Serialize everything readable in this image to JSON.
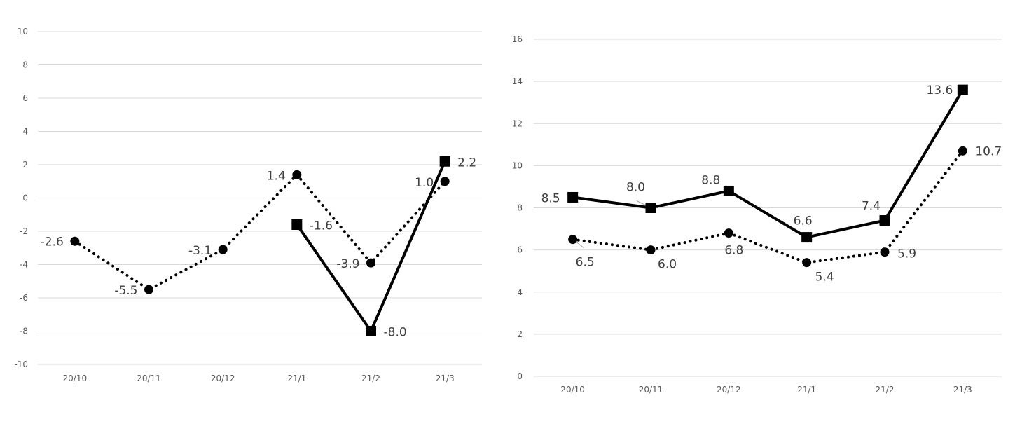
{
  "chart_data": [
    {
      "type": "line",
      "title": "",
      "xlabel": "",
      "ylabel": "",
      "categories": [
        "20/10",
        "20/11",
        "20/12",
        "21/1",
        "21/2",
        "21/3"
      ],
      "ylim": [
        -10,
        10
      ],
      "yticks": [
        -10,
        -8,
        -6,
        -4,
        -2,
        0,
        2,
        4,
        6,
        8,
        10
      ],
      "grid": true,
      "series": [
        {
          "values": [
            -2.6,
            -5.5,
            -3.1,
            1.4,
            -3.9,
            1.0
          ],
          "labels": [
            "-2.6",
            "-5.5",
            "-3.1",
            "1.4",
            "-3.9",
            "1.0"
          ],
          "style": "dotted",
          "marker": "circle",
          "color": "#000000"
        },
        {
          "values": [
            null,
            null,
            null,
            -1.6,
            -8.0,
            2.2
          ],
          "labels": [
            "",
            "",
            "",
            "-1.6",
            "-8.0",
            "2.2"
          ],
          "style": "solid",
          "marker": "square",
          "color": "#000000"
        }
      ]
    },
    {
      "type": "line",
      "title": "",
      "xlabel": "",
      "ylabel": "",
      "categories": [
        "20/10",
        "20/11",
        "20/12",
        "21/1",
        "21/2",
        "21/3"
      ],
      "ylim": [
        0,
        16
      ],
      "yticks": [
        0,
        2,
        4,
        6,
        8,
        10,
        12,
        14,
        16
      ],
      "grid": true,
      "series": [
        {
          "values": [
            6.5,
            6.0,
            6.8,
            5.4,
            5.9,
            10.7
          ],
          "labels": [
            "6.5",
            "6.0",
            "6.8",
            "5.4",
            "5.9",
            "10.7"
          ],
          "style": "dotted",
          "marker": "circle",
          "color": "#000000"
        },
        {
          "values": [
            8.5,
            8.0,
            8.8,
            6.6,
            7.4,
            13.6
          ],
          "labels": [
            "8.5",
            "8.0",
            "8.8",
            "6.6",
            "7.4",
            "13.6"
          ],
          "style": "solid",
          "marker": "square",
          "color": "#000000"
        }
      ]
    }
  ]
}
